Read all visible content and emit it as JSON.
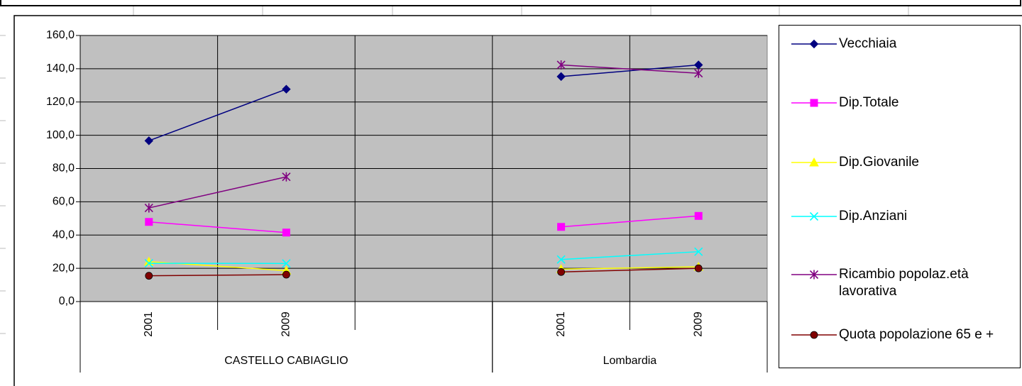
{
  "chart_data": {
    "type": "line",
    "categories": [
      "2001",
      "2009",
      null,
      "2001",
      "2009"
    ],
    "groups": [
      {
        "label": "CASTELLO CABIAGLIO",
        "categories": [
          0,
          1,
          2
        ]
      },
      {
        "label": "Lombardia",
        "categories": [
          3,
          4
        ]
      }
    ],
    "series": [
      {
        "name": "Vecchiaia",
        "color": "#000080",
        "marker": "diamond",
        "values": [
          96.7,
          127.7,
          null,
          135.3,
          142.3
        ]
      },
      {
        "name": "Dip.Totale",
        "color": "#ff00ff",
        "marker": "square",
        "values": [
          47.9,
          41.5,
          null,
          44.9,
          51.5
        ]
      },
      {
        "name": "Dip.Giovanile",
        "color": "#ffff00",
        "marker": "triangle",
        "values": [
          24.0,
          18.6,
          null,
          19.5,
          20.9
        ]
      },
      {
        "name": "Dip.Anziani",
        "color": "#00ffff",
        "marker": "x",
        "values": [
          23.0,
          22.9,
          null,
          25.3,
          30.0
        ]
      },
      {
        "name": "Ricambio popolaz.età lavorativa",
        "color": "#800080",
        "marker": "star",
        "values": [
          56.3,
          75.0,
          null,
          142.3,
          137.3
        ]
      },
      {
        "name": "Quota popolazione 65 e +",
        "color": "#800000",
        "marker": "circle",
        "values": [
          15.5,
          16.2,
          null,
          17.8,
          20.0
        ]
      }
    ],
    "ylim": [
      0,
      160
    ],
    "yticks": [
      {
        "value": 0,
        "label": "0,0"
      },
      {
        "value": 20,
        "label": "20,0"
      },
      {
        "value": 40,
        "label": "40,0"
      },
      {
        "value": 60,
        "label": "60,0"
      },
      {
        "value": 80,
        "label": "80,0"
      },
      {
        "value": 100,
        "label": "100,0"
      },
      {
        "value": 120,
        "label": "120,0"
      },
      {
        "value": 140,
        "label": "140,0"
      },
      {
        "value": 160,
        "label": "160,0"
      }
    ],
    "grid": true,
    "plot_background": "#c0c0c0",
    "legend": "right"
  }
}
